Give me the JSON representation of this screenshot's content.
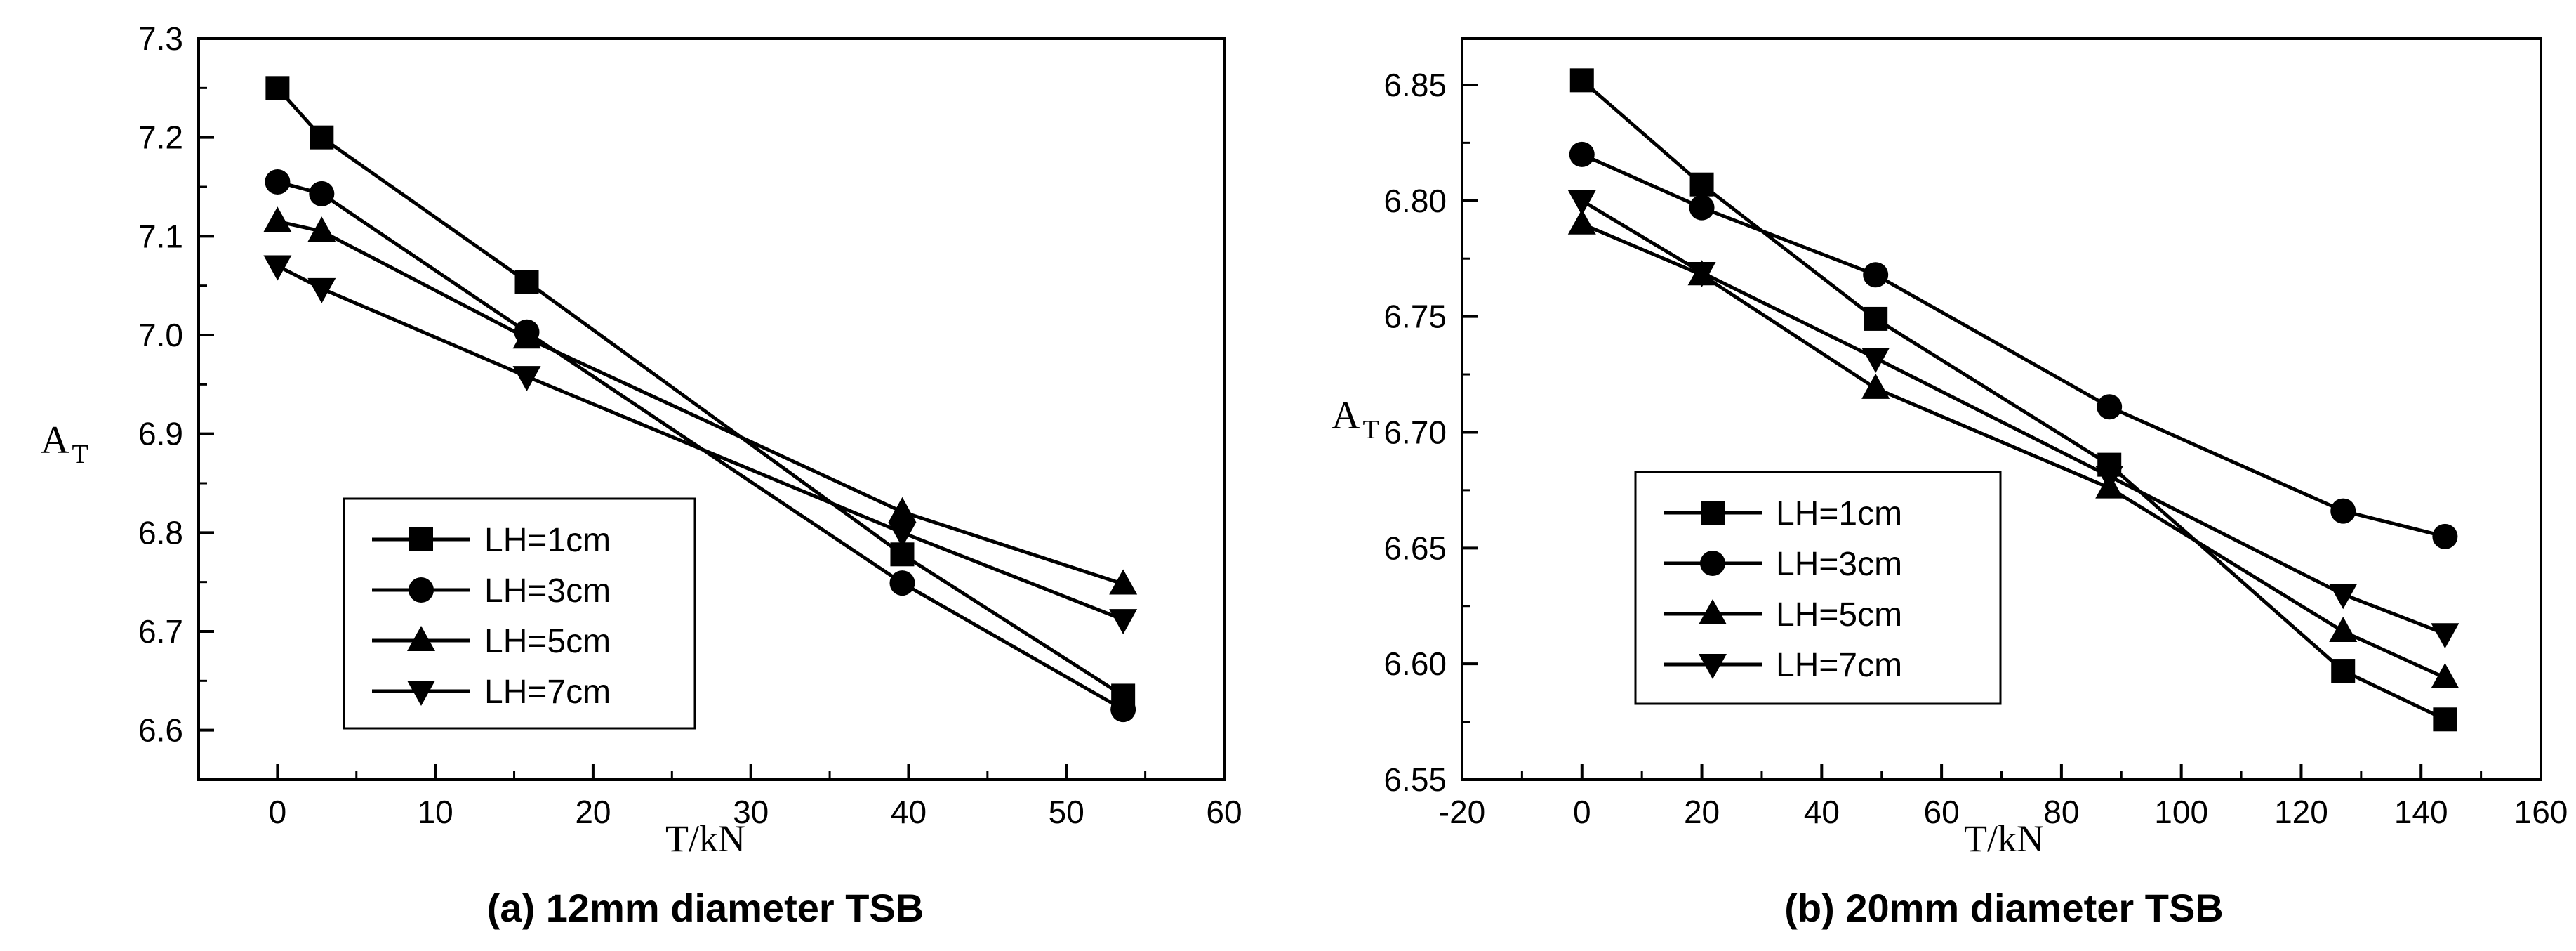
{
  "chart_data": [
    {
      "type": "line",
      "caption": "(a) 12mm diameter TSB",
      "xlabel": "T/kN",
      "ylabel_main": "A",
      "ylabel_sub": "T",
      "xlim": [
        -5,
        60
      ],
      "ylim": [
        6.55,
        7.3
      ],
      "xticks": [
        0,
        10,
        20,
        30,
        40,
        50,
        60
      ],
      "yticks": [
        6.6,
        6.7,
        6.8,
        6.9,
        7.0,
        7.1,
        7.2,
        7.3
      ],
      "ytick_decimals": 1,
      "grid": false,
      "legend_placement": "bottom-left",
      "series": [
        {
          "name": "LH=1cm",
          "marker": "square",
          "x": [
            0,
            2.8,
            15.8,
            39.6,
            53.6
          ],
          "y": [
            7.25,
            7.2,
            7.054,
            6.778,
            6.635
          ]
        },
        {
          "name": "LH=3cm",
          "marker": "circle",
          "x": [
            0,
            2.8,
            15.8,
            39.6,
            53.6
          ],
          "y": [
            7.155,
            7.143,
            7.003,
            6.749,
            6.621
          ]
        },
        {
          "name": "LH=5cm",
          "marker": "triangle-up",
          "x": [
            0,
            2.8,
            15.8,
            39.6,
            53.6
          ],
          "y": [
            7.115,
            7.105,
            6.997,
            6.821,
            6.748
          ]
        },
        {
          "name": "LH=7cm",
          "marker": "triangle-down",
          "x": [
            0,
            2.8,
            15.8,
            39.6,
            53.6
          ],
          "y": [
            7.07,
            7.047,
            6.958,
            6.8,
            6.712
          ]
        }
      ]
    },
    {
      "type": "line",
      "caption": "(b) 20mm diameter TSB",
      "xlabel": "T/kN",
      "ylabel_main": "A",
      "ylabel_sub": "T",
      "xlim": [
        -20,
        160
      ],
      "ylim": [
        6.55,
        6.87
      ],
      "xticks": [
        -20,
        0,
        20,
        40,
        60,
        80,
        100,
        120,
        140,
        160
      ],
      "yticks": [
        6.55,
        6.6,
        6.65,
        6.7,
        6.75,
        6.8,
        6.85
      ],
      "ytick_decimals": 2,
      "grid": false,
      "legend_placement": "bottom-left",
      "series": [
        {
          "name": "LH=1cm",
          "marker": "square",
          "x": [
            0,
            20,
            49,
            88,
            127,
            144
          ],
          "y": [
            6.852,
            6.807,
            6.749,
            6.686,
            6.597,
            6.576
          ]
        },
        {
          "name": "LH=3cm",
          "marker": "circle",
          "x": [
            0,
            20,
            49,
            88,
            127,
            144
          ],
          "y": [
            6.82,
            6.797,
            6.768,
            6.711,
            6.666,
            6.655
          ]
        },
        {
          "name": "LH=5cm",
          "marker": "triangle-up",
          "x": [
            0,
            20,
            49,
            88,
            127,
            144
          ],
          "y": [
            6.79,
            6.768,
            6.719,
            6.676,
            6.614,
            6.594
          ]
        },
        {
          "name": "LH=7cm",
          "marker": "triangle-down",
          "x": [
            0,
            20,
            49,
            88,
            127,
            144
          ],
          "y": [
            6.8,
            6.769,
            6.732,
            6.681,
            6.63,
            6.613
          ]
        }
      ]
    }
  ]
}
